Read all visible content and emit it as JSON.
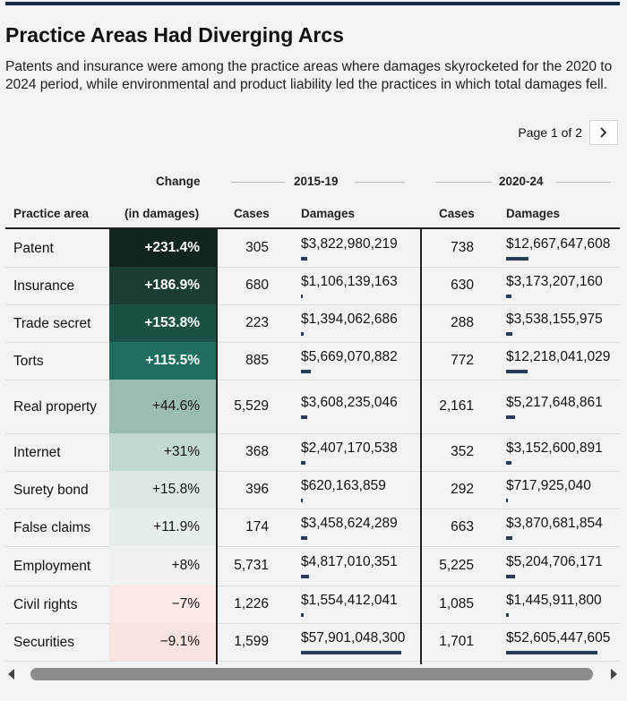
{
  "header": {
    "title": "Practice Areas Had Diverging Arcs",
    "subtitle": "Patents and insurance were among the practice areas where damages skyrocketed for the 2020 to 2024 period, while environmental and product liability led the practices in which total damages fell."
  },
  "pager": {
    "label": "Page 1 of 2"
  },
  "table": {
    "group_headers": {
      "change": "Change",
      "period1": "2015-19",
      "period2": "2020-24"
    },
    "columns": {
      "area": "Practice area",
      "change": "(in damages)",
      "cases1": "Cases",
      "damages1": "Damages",
      "cases2": "Cases",
      "damages2": "Damages"
    }
  },
  "colors": {
    "positive_scale": [
      "#122421",
      "#1a3d36",
      "#1c5246",
      "#1f6e5e",
      "#9bbcb3",
      "#c2d8d2",
      "#dde8e5",
      "#e7efed",
      "#eef3f2"
    ],
    "negative_scale": [
      "#fde9e7",
      "#fce3e0"
    ],
    "bar": "#2a3b56"
  },
  "chart_data": {
    "type": "table",
    "title": "Practice Areas Had Diverging Arcs",
    "damages_max": 57901048300,
    "rows": [
      {
        "area": "Patent",
        "change": "+231.4%",
        "change_value": 231.4,
        "cases_2015_19": "305",
        "damages_2015_19": "$3,822,980,219",
        "d1": 3822980219,
        "cases_2020_24": "738",
        "damages_2020_24": "$12,667,647,608",
        "d2": 12667647608
      },
      {
        "area": "Insurance",
        "change": "+186.9%",
        "change_value": 186.9,
        "cases_2015_19": "680",
        "damages_2015_19": "$1,106,139,163",
        "d1": 1106139163,
        "cases_2020_24": "630",
        "damages_2020_24": "$3,173,207,160",
        "d2": 3173207160
      },
      {
        "area": "Trade secret",
        "change": "+153.8%",
        "change_value": 153.8,
        "cases_2015_19": "223",
        "damages_2015_19": "$1,394,062,686",
        "d1": 1394062686,
        "cases_2020_24": "288",
        "damages_2020_24": "$3,538,155,975",
        "d2": 3538155975
      },
      {
        "area": "Torts",
        "change": "+115.5%",
        "change_value": 115.5,
        "cases_2015_19": "885",
        "damages_2015_19": "$5,669,070,882",
        "d1": 5669070882,
        "cases_2020_24": "772",
        "damages_2020_24": "$12,218,041,029",
        "d2": 12218041029
      },
      {
        "area": "Real property",
        "change": "+44.6%",
        "change_value": 44.6,
        "cases_2015_19": "5,529",
        "damages_2015_19": "$3,608,235,046",
        "d1": 3608235046,
        "cases_2020_24": "2,161",
        "damages_2020_24": "$5,217,648,861",
        "d2": 5217648861
      },
      {
        "area": "Internet",
        "change": "+31%",
        "change_value": 31,
        "cases_2015_19": "368",
        "damages_2015_19": "$2,407,170,538",
        "d1": 2407170538,
        "cases_2020_24": "352",
        "damages_2020_24": "$3,152,600,891",
        "d2": 3152600891
      },
      {
        "area": "Surety bond",
        "change": "+15.8%",
        "change_value": 15.8,
        "cases_2015_19": "396",
        "damages_2015_19": "$620,163,859",
        "d1": 620163859,
        "cases_2020_24": "292",
        "damages_2020_24": "$717,925,040",
        "d2": 717925040
      },
      {
        "area": "False claims",
        "change": "+11.9%",
        "change_value": 11.9,
        "cases_2015_19": "174",
        "damages_2015_19": "$3,458,624,289",
        "d1": 3458624289,
        "cases_2020_24": "663",
        "damages_2020_24": "$3,870,681,854",
        "d2": 3870681854
      },
      {
        "area": "Employment",
        "change": "+8%",
        "change_value": 8,
        "cases_2015_19": "5,731",
        "damages_2015_19": "$4,817,010,351",
        "d1": 4817010351,
        "cases_2020_24": "5,225",
        "damages_2020_24": "$5,204,706,171",
        "d2": 5204706171
      },
      {
        "area": "Civil rights",
        "change": "−7%",
        "change_value": -7,
        "cases_2015_19": "1,226",
        "damages_2015_19": "$1,554,412,041",
        "d1": 1554412041,
        "cases_2020_24": "1,085",
        "damages_2020_24": "$1,445,911,800",
        "d2": 1445911800
      },
      {
        "area": "Securities",
        "change": "−9.1%",
        "change_value": -9.1,
        "cases_2015_19": "1,599",
        "damages_2015_19": "$57,901,048,300",
        "d1": 57901048300,
        "cases_2020_24": "1,701",
        "damages_2020_24": "$52,605,447,605",
        "d2": 52605447605
      }
    ]
  }
}
